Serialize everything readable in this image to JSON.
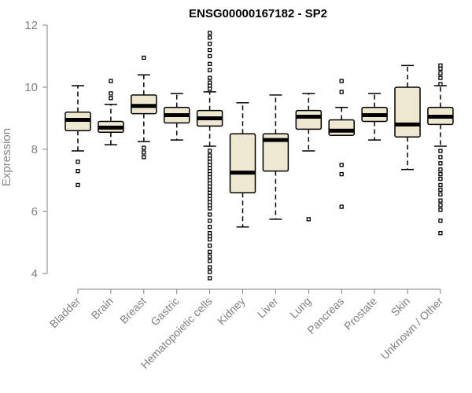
{
  "chart_data": {
    "type": "boxplot",
    "title": "ENSG00000167182 - SP2",
    "ylabel": "Expression",
    "xlabel": "",
    "ylim": [
      3.7,
      12.1
    ],
    "yticks": [
      4,
      6,
      8,
      10,
      12
    ],
    "box_fill": "#EEE8D0",
    "categories": [
      "Bladder",
      "Brain",
      "Breast",
      "Gastric",
      "Hematopoietic cells",
      "Kidney",
      "Liver",
      "Lung",
      "Pancreas",
      "Prostate",
      "Skin",
      "Unknown / Other"
    ],
    "boxes": [
      {
        "min": 7.95,
        "q1": 8.6,
        "median": 8.95,
        "q3": 9.2,
        "max": 10.05,
        "outliers": [
          7.6,
          7.3,
          6.85
        ]
      },
      {
        "min": 8.15,
        "q1": 8.55,
        "median": 8.7,
        "q3": 8.9,
        "max": 9.45,
        "outliers": [
          9.65,
          9.8,
          10.2
        ]
      },
      {
        "min": 8.25,
        "q1": 9.15,
        "median": 9.4,
        "q3": 9.75,
        "max": 10.4,
        "outliers": [
          10.95,
          8.05,
          7.9,
          7.75
        ]
      },
      {
        "min": 8.3,
        "q1": 8.85,
        "median": 9.1,
        "q3": 9.35,
        "max": 9.8,
        "outliers": []
      },
      {
        "min": 8.1,
        "q1": 8.75,
        "median": 9.0,
        "q3": 9.25,
        "max": 9.85,
        "outliers": [
          11.75,
          11.6,
          11.4,
          11.2,
          11.0,
          10.75,
          10.55,
          10.3,
          10.15,
          10.05,
          9.95,
          7.95,
          7.8,
          7.7,
          7.6,
          7.5,
          7.4,
          7.3,
          7.2,
          7.1,
          7.0,
          6.9,
          6.8,
          6.7,
          6.6,
          6.5,
          6.4,
          6.3,
          6.2,
          6.1,
          5.9,
          5.7,
          5.5,
          5.3,
          5.2,
          5.1,
          4.9,
          4.7,
          4.55,
          4.4,
          4.2,
          4.05,
          3.85
        ]
      },
      {
        "min": 5.5,
        "q1": 6.6,
        "median": 7.25,
        "q3": 8.5,
        "max": 9.5,
        "outliers": []
      },
      {
        "min": 5.75,
        "q1": 7.3,
        "median": 8.3,
        "q3": 8.5,
        "max": 9.75,
        "outliers": []
      },
      {
        "min": 7.95,
        "q1": 8.65,
        "median": 9.05,
        "q3": 9.25,
        "max": 9.8,
        "outliers": [
          5.75
        ]
      },
      {
        "min": 8.45,
        "q1": 8.45,
        "median": 8.6,
        "q3": 8.95,
        "max": 9.35,
        "outliers": [
          10.2,
          9.85,
          7.5,
          7.2,
          6.15
        ]
      },
      {
        "min": 8.3,
        "q1": 8.9,
        "median": 9.1,
        "q3": 9.35,
        "max": 9.8,
        "outliers": []
      },
      {
        "min": 7.35,
        "q1": 8.4,
        "median": 8.8,
        "q3": 10.0,
        "max": 10.7,
        "outliers": []
      },
      {
        "min": 8.1,
        "q1": 8.8,
        "median": 9.05,
        "q3": 9.35,
        "max": 10.05,
        "outliers": [
          10.7,
          10.6,
          10.45,
          10.3,
          10.1,
          7.95,
          7.75,
          7.55,
          7.35,
          7.2,
          7.05,
          6.85,
          6.7,
          6.55,
          6.35,
          6.2,
          6.05,
          5.7,
          5.3
        ]
      }
    ]
  }
}
